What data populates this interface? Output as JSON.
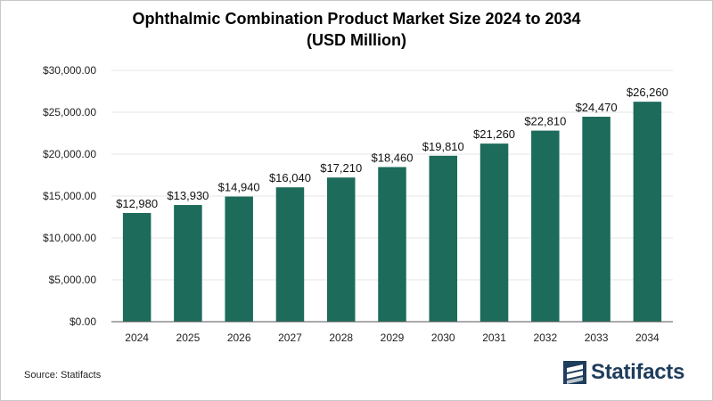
{
  "title_line1": "Ophthalmic Combination Product Market Size 2024 to 2034",
  "title_line2": "(USD Million)",
  "source": "Source: Statifacts",
  "brand": "Statifacts",
  "colors": {
    "bar": "#1c6b5b",
    "grid": "#e6e6e6",
    "axis": "#555555"
  },
  "chart_data": {
    "type": "bar",
    "categories": [
      "2024",
      "2025",
      "2026",
      "2027",
      "2028",
      "2029",
      "2030",
      "2031",
      "2032",
      "2033",
      "2034"
    ],
    "values": [
      12980,
      13930,
      14940,
      16040,
      17210,
      18460,
      19810,
      21260,
      22810,
      24470,
      26260
    ],
    "value_labels": [
      "$12,980",
      "$13,930",
      "$14,940",
      "$16,040",
      "$17,210",
      "$18,460",
      "$19,810",
      "$21,260",
      "$22,810",
      "$24,470",
      "$26,260"
    ],
    "ylim": [
      0,
      30000
    ],
    "yticks": [
      0,
      5000,
      10000,
      15000,
      20000,
      25000,
      30000
    ],
    "ytick_labels": [
      "$0.00",
      "$5,000.00",
      "$10,000.00",
      "$15,000.00",
      "$20,000.00",
      "$25,000.00",
      "$30,000.00"
    ],
    "xlabel": "",
    "ylabel": "",
    "grid": true
  }
}
